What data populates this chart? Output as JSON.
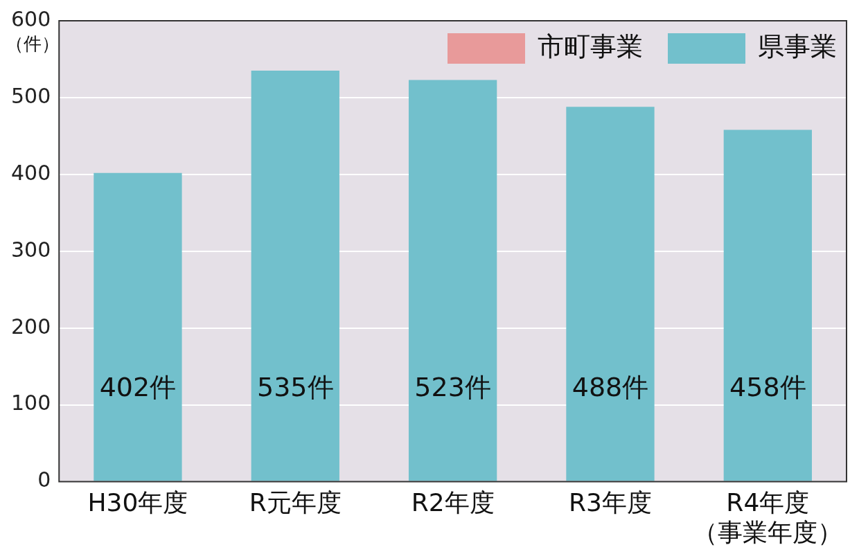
{
  "chart_data": {
    "type": "bar",
    "ylabel": "（件）",
    "categories": [
      "H30年度",
      "R元年度",
      "R2年度",
      "R3年度",
      "R4年度（事業年度）"
    ],
    "series": [
      {
        "name": "市町事業",
        "color": "#e89a9a",
        "values": [
          null,
          null,
          null,
          null,
          null
        ]
      },
      {
        "name": "県事業",
        "color": "#72c0cc",
        "values": [
          402,
          535,
          523,
          488,
          458
        ],
        "value_labels": [
          "402件",
          "535件",
          "523件",
          "488件",
          "458件"
        ]
      }
    ],
    "stacked": true,
    "ylim": [
      0,
      600
    ],
    "yticks": [
      0,
      100,
      200,
      300,
      400,
      500,
      600
    ],
    "grid": "y",
    "legend": "top right"
  }
}
